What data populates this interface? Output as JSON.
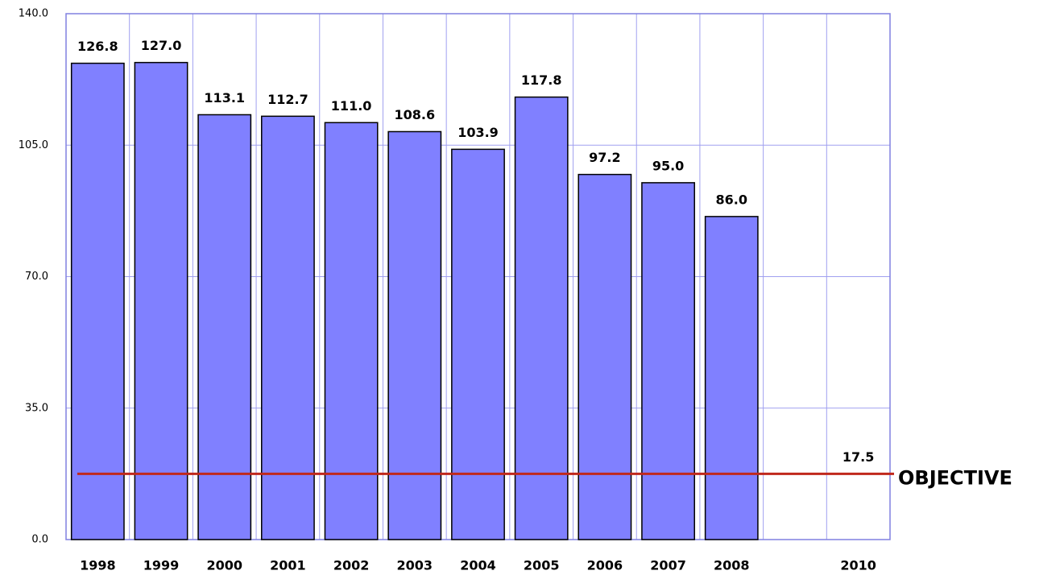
{
  "chart_data": {
    "type": "bar",
    "categories": [
      "1998",
      "1999",
      "2000",
      "2001",
      "2002",
      "2003",
      "2004",
      "2005",
      "2006",
      "2007",
      "2008",
      null,
      "2010"
    ],
    "values": [
      126.8,
      127.0,
      113.1,
      112.7,
      111.0,
      108.6,
      103.9,
      117.8,
      97.2,
      95.0,
      86.0,
      null,
      null
    ],
    "value_labels": [
      "126.8",
      "127.0",
      "113.1",
      "112.7",
      "111.0",
      "108.6",
      "103.9",
      "117.8",
      "97.2",
      "95.0",
      "86.0",
      null,
      null
    ],
    "color": "#8080ff",
    "ylim": [
      0,
      140
    ],
    "yticks": [
      {
        "value": 0,
        "label": "0.0"
      },
      {
        "value": 35,
        "label": "35.0"
      },
      {
        "value": 70,
        "label": "70.0"
      },
      {
        "value": 105,
        "label": "105.0"
      },
      {
        "value": 140,
        "label": "140.0"
      }
    ],
    "grid": true,
    "objective": {
      "value": 17.5,
      "label": "OBJECTIVE",
      "color": "#c0281c"
    }
  }
}
